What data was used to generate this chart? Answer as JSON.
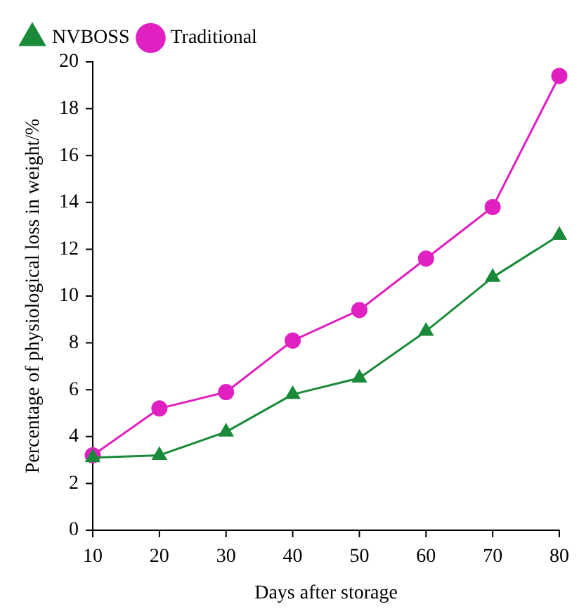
{
  "chart_data": {
    "type": "line",
    "xlabel": "Days after storage",
    "ylabel": "Percentage of physiological loss in weight/%",
    "x": [
      10,
      20,
      30,
      40,
      50,
      60,
      70,
      80
    ],
    "xlim": [
      10,
      80
    ],
    "xticks": [
      10,
      20,
      30,
      40,
      50,
      60,
      70,
      80
    ],
    "ylim": [
      0,
      20
    ],
    "yticks": [
      0,
      2,
      4,
      6,
      8,
      10,
      12,
      14,
      16,
      18,
      20
    ],
    "grid": false,
    "legend": "top left",
    "line_style": "solid",
    "series": [
      {
        "name": "NVBOSS",
        "color": "#1a8a3a",
        "marker": "triangle",
        "values": [
          3.1,
          3.2,
          4.2,
          5.8,
          6.5,
          8.5,
          10.8,
          12.6
        ]
      },
      {
        "name": "Traditional",
        "color": "#e020c0",
        "marker": "circle",
        "values": [
          3.2,
          5.2,
          5.9,
          8.1,
          9.4,
          11.6,
          13.8,
          19.4
        ]
      }
    ]
  }
}
